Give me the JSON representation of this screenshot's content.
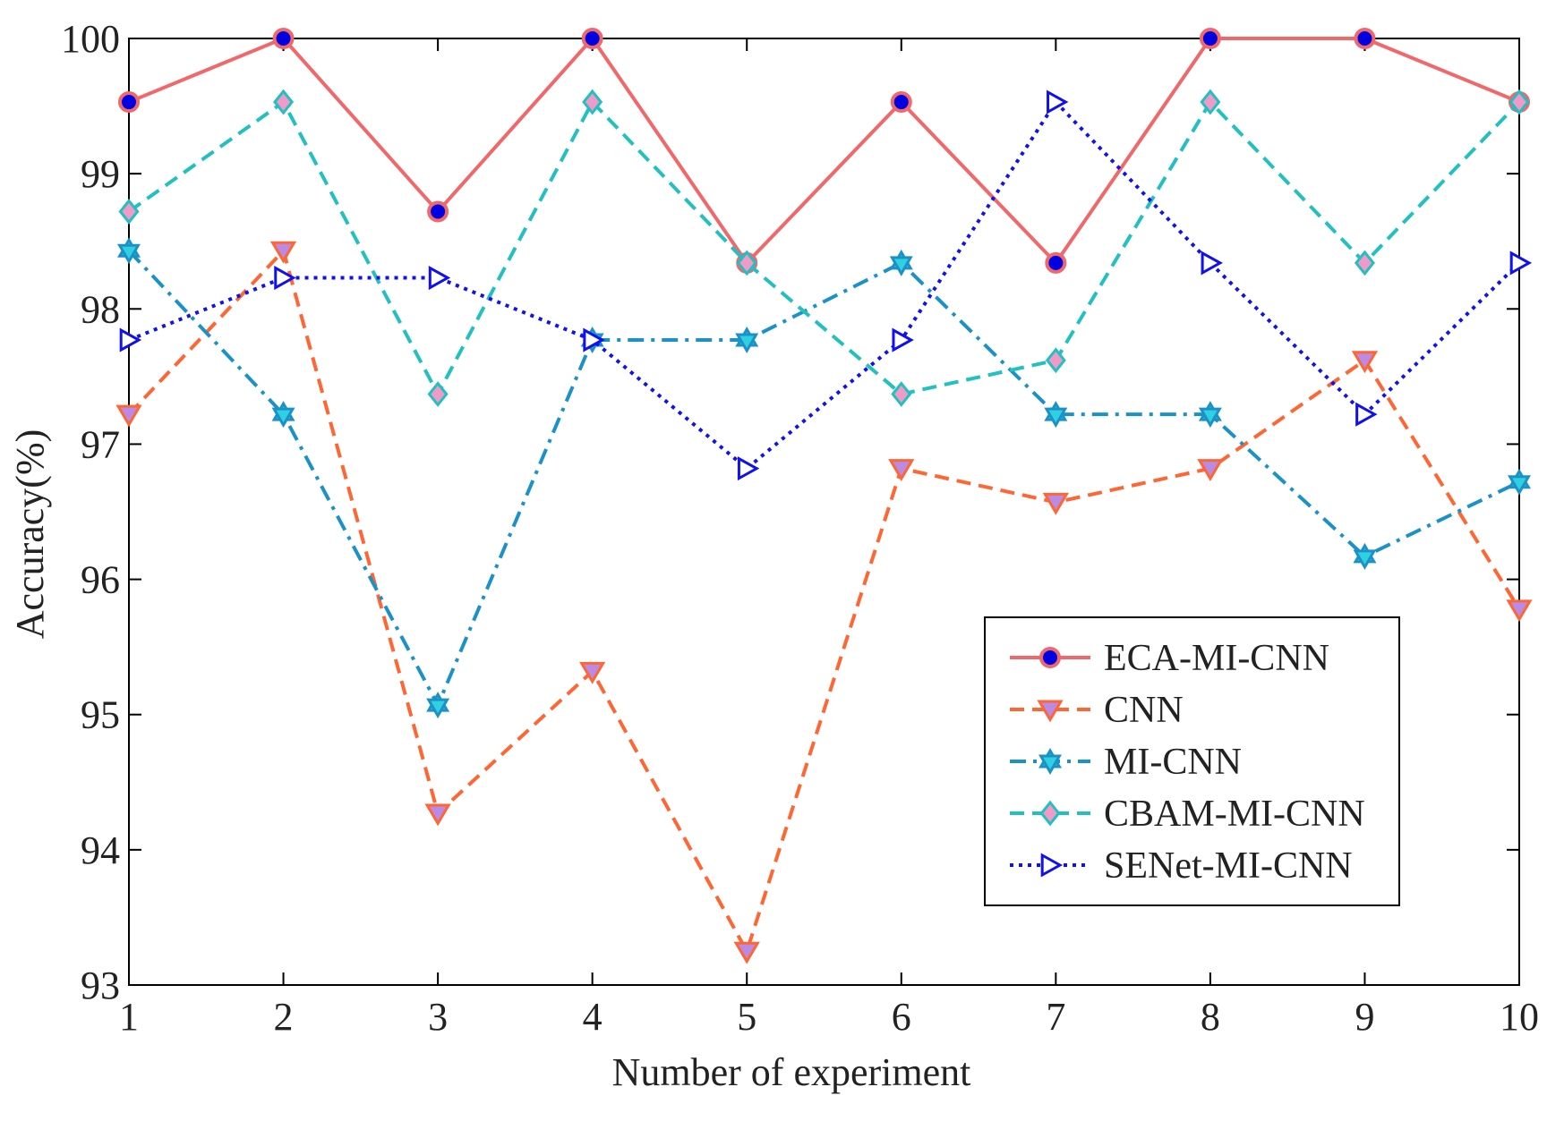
{
  "chart_data": {
    "type": "line",
    "title": "",
    "xlabel": "Number of experiment",
    "ylabel": "Accuracy(%)",
    "x": [
      1,
      2,
      3,
      4,
      5,
      6,
      7,
      8,
      9,
      10
    ],
    "xlim": [
      1,
      10
    ],
    "ylim": [
      93,
      100
    ],
    "xticks": [
      "1",
      "2",
      "3",
      "4",
      "5",
      "6",
      "7",
      "8",
      "9",
      "10"
    ],
    "yticks": [
      "93",
      "94",
      "95",
      "96",
      "97",
      "98",
      "99",
      "100"
    ],
    "grid": false,
    "legend_position": "bottom-right",
    "series": [
      {
        "name": "ECA-MI-CNN",
        "values": [
          99.53,
          100,
          98.72,
          100,
          98.34,
          99.53,
          98.34,
          100,
          100,
          99.53
        ],
        "color": "#F0686A",
        "line_style": "solid",
        "marker": "circle",
        "marker_fill": "#0000E0"
      },
      {
        "name": "CNN",
        "values": [
          97.22,
          98.43,
          94.27,
          95.32,
          93.25,
          96.82,
          96.57,
          96.82,
          97.62,
          95.78
        ],
        "color": "#FF6633",
        "line_style": "dashed",
        "marker": "triangle-down",
        "marker_fill": "#B98AE6"
      },
      {
        "name": "MI-CNN",
        "values": [
          98.43,
          97.22,
          95.07,
          97.77,
          97.77,
          98.34,
          97.22,
          97.22,
          96.17,
          96.72
        ],
        "color": "#1A92C8",
        "line_style": "dashdot",
        "marker": "hexagram",
        "marker_fill": "#30D0E0"
      },
      {
        "name": "CBAM-MI-CNN",
        "values": [
          98.72,
          99.53,
          97.37,
          99.53,
          98.34,
          97.37,
          97.62,
          99.53,
          98.34,
          99.53
        ],
        "color": "#22C0C0",
        "line_style": "dashed",
        "marker": "diamond",
        "marker_fill": "#F09AC8"
      },
      {
        "name": "SENet-MI-CNN",
        "values": [
          97.77,
          98.23,
          98.23,
          97.77,
          96.82,
          97.77,
          99.53,
          98.34,
          97.22,
          98.34
        ],
        "color": "#1010F0",
        "line_style": "dotted",
        "marker": "triangle-right",
        "marker_fill": "#FFFFFF"
      }
    ]
  }
}
